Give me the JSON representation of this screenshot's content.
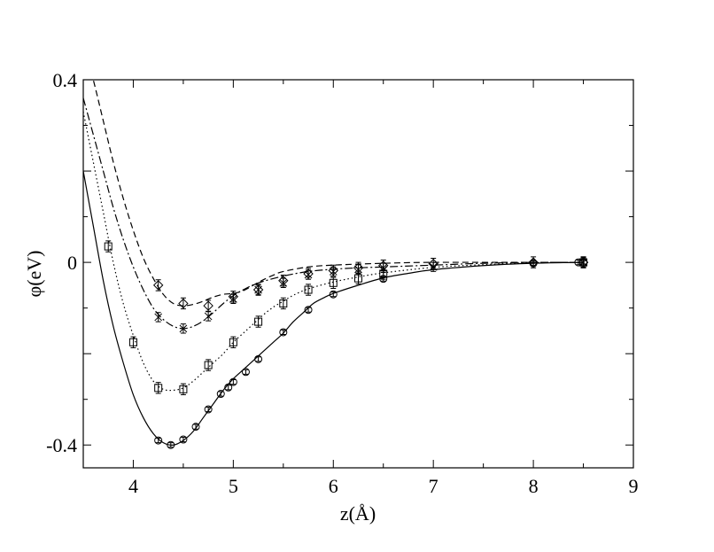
{
  "chart_data": {
    "type": "line",
    "title": "",
    "xlabel": "z(Å)",
    "ylabel": "φ(eV)",
    "xlim": [
      3.5,
      9.0
    ],
    "ylim": [
      -0.45,
      0.4
    ],
    "grid": false,
    "legend": "none",
    "x_ticks": [
      4,
      5,
      6,
      7,
      8,
      9
    ],
    "x_tick_labels": [
      "4",
      "5",
      "6",
      "7",
      "8",
      "9"
    ],
    "y_ticks": [
      -0.4,
      0,
      0.4
    ],
    "y_tick_labels": [
      "-0.4",
      "0",
      "0.4"
    ],
    "y_minor_ticks": [
      -0.2,
      0.2
    ],
    "series": [
      {
        "line_style": "solid",
        "marker": "circle",
        "curve": [
          [
            3.5,
            0.2
          ],
          [
            3.6,
            0.08
          ],
          [
            3.7,
            -0.04
          ],
          [
            3.8,
            -0.14
          ],
          [
            3.9,
            -0.22
          ],
          [
            4.0,
            -0.29
          ],
          [
            4.1,
            -0.34
          ],
          [
            4.2,
            -0.375
          ],
          [
            4.3,
            -0.395
          ],
          [
            4.4,
            -0.4
          ],
          [
            4.5,
            -0.39
          ],
          [
            4.6,
            -0.37
          ],
          [
            4.7,
            -0.34
          ],
          [
            4.8,
            -0.31
          ],
          [
            4.9,
            -0.28
          ],
          [
            5.0,
            -0.255
          ],
          [
            5.1,
            -0.235
          ],
          [
            5.2,
            -0.215
          ],
          [
            5.3,
            -0.195
          ],
          [
            5.4,
            -0.175
          ],
          [
            5.5,
            -0.155
          ],
          [
            5.6,
            -0.13
          ],
          [
            5.7,
            -0.11
          ],
          [
            5.8,
            -0.09
          ],
          [
            5.9,
            -0.078
          ],
          [
            6.0,
            -0.068
          ],
          [
            6.25,
            -0.05
          ],
          [
            6.5,
            -0.034
          ],
          [
            6.75,
            -0.024
          ],
          [
            7.0,
            -0.016
          ],
          [
            7.5,
            -0.007
          ],
          [
            8.0,
            -0.002
          ],
          [
            8.5,
            0.0
          ]
        ],
        "points": [
          [
            4.25,
            -0.39
          ],
          [
            4.375,
            -0.4
          ],
          [
            4.5,
            -0.388
          ],
          [
            4.625,
            -0.36
          ],
          [
            4.75,
            -0.322
          ],
          [
            4.875,
            -0.288
          ],
          [
            4.95,
            -0.274
          ],
          [
            5.0,
            -0.262
          ],
          [
            5.125,
            -0.24
          ],
          [
            5.25,
            -0.212
          ],
          [
            5.5,
            -0.153
          ],
          [
            5.75,
            -0.104
          ],
          [
            6.0,
            -0.07
          ],
          [
            6.5,
            -0.036
          ],
          [
            8.0,
            -0.002
          ],
          [
            8.45,
            0.0
          ],
          [
            8.5,
            0.0
          ]
        ],
        "error": 0.005
      },
      {
        "line_style": "dotted",
        "marker": "square",
        "curve": [
          [
            3.5,
            0.33
          ],
          [
            3.6,
            0.22
          ],
          [
            3.7,
            0.11
          ],
          [
            3.8,
            0.0
          ],
          [
            3.9,
            -0.09
          ],
          [
            4.0,
            -0.16
          ],
          [
            4.1,
            -0.22
          ],
          [
            4.2,
            -0.26
          ],
          [
            4.3,
            -0.278
          ],
          [
            4.4,
            -0.28
          ],
          [
            4.5,
            -0.275
          ],
          [
            4.6,
            -0.26
          ],
          [
            4.7,
            -0.24
          ],
          [
            4.8,
            -0.22
          ],
          [
            4.9,
            -0.2
          ],
          [
            5.0,
            -0.175
          ],
          [
            5.1,
            -0.155
          ],
          [
            5.2,
            -0.135
          ],
          [
            5.3,
            -0.115
          ],
          [
            5.4,
            -0.098
          ],
          [
            5.5,
            -0.085
          ],
          [
            5.6,
            -0.072
          ],
          [
            5.75,
            -0.058
          ],
          [
            6.0,
            -0.043
          ],
          [
            6.25,
            -0.032
          ],
          [
            6.5,
            -0.023
          ],
          [
            7.0,
            -0.011
          ],
          [
            7.5,
            -0.005
          ],
          [
            8.0,
            -0.001
          ],
          [
            8.5,
            0.0
          ]
        ],
        "points": [
          [
            3.75,
            0.035
          ],
          [
            4.0,
            -0.175
          ],
          [
            4.25,
            -0.275
          ],
          [
            4.5,
            -0.278
          ],
          [
            4.75,
            -0.225
          ],
          [
            5.0,
            -0.175
          ],
          [
            5.25,
            -0.13
          ],
          [
            5.5,
            -0.09
          ],
          [
            5.75,
            -0.06
          ],
          [
            6.0,
            -0.045
          ],
          [
            6.25,
            -0.035
          ],
          [
            6.5,
            -0.025
          ],
          [
            8.5,
            0.0
          ]
        ],
        "error": 0.012
      },
      {
        "line_style": "dash-dot",
        "marker": "x",
        "curve": [
          [
            3.5,
            0.36
          ],
          [
            3.6,
            0.28
          ],
          [
            3.7,
            0.2
          ],
          [
            3.8,
            0.12
          ],
          [
            3.9,
            0.05
          ],
          [
            4.0,
            -0.01
          ],
          [
            4.1,
            -0.06
          ],
          [
            4.2,
            -0.1
          ],
          [
            4.3,
            -0.125
          ],
          [
            4.4,
            -0.14
          ],
          [
            4.5,
            -0.145
          ],
          [
            4.6,
            -0.14
          ],
          [
            4.7,
            -0.128
          ],
          [
            4.8,
            -0.11
          ],
          [
            4.9,
            -0.09
          ],
          [
            5.0,
            -0.073
          ],
          [
            5.1,
            -0.06
          ],
          [
            5.25,
            -0.045
          ],
          [
            5.5,
            -0.03
          ],
          [
            5.75,
            -0.02
          ],
          [
            6.0,
            -0.015
          ],
          [
            6.25,
            -0.012
          ],
          [
            6.5,
            -0.01
          ],
          [
            7.0,
            -0.006
          ],
          [
            7.5,
            -0.002
          ],
          [
            8.0,
            0.0
          ],
          [
            8.5,
            0.0
          ]
        ],
        "points": [
          [
            4.25,
            -0.12
          ],
          [
            4.5,
            -0.145
          ],
          [
            4.75,
            -0.118
          ],
          [
            5.0,
            -0.08
          ],
          [
            5.25,
            -0.06
          ],
          [
            5.5,
            -0.045
          ],
          [
            5.75,
            -0.027
          ],
          [
            6.0,
            -0.02
          ],
          [
            6.25,
            -0.015
          ],
          [
            6.5,
            -0.012
          ],
          [
            7.0,
            -0.01
          ],
          [
            8.5,
            0.0
          ]
        ],
        "error": 0.01
      },
      {
        "line_style": "dashed",
        "marker": "diamond",
        "curve": [
          [
            3.5,
            0.48
          ],
          [
            3.6,
            0.4
          ],
          [
            3.7,
            0.31
          ],
          [
            3.8,
            0.22
          ],
          [
            3.9,
            0.14
          ],
          [
            4.0,
            0.07
          ],
          [
            4.1,
            0.01
          ],
          [
            4.2,
            -0.035
          ],
          [
            4.3,
            -0.07
          ],
          [
            4.4,
            -0.09
          ],
          [
            4.5,
            -0.095
          ],
          [
            4.6,
            -0.092
          ],
          [
            4.7,
            -0.085
          ],
          [
            4.8,
            -0.076
          ],
          [
            4.9,
            -0.07
          ],
          [
            5.0,
            -0.068
          ],
          [
            5.1,
            -0.062
          ],
          [
            5.2,
            -0.05
          ],
          [
            5.3,
            -0.038
          ],
          [
            5.4,
            -0.028
          ],
          [
            5.5,
            -0.02
          ],
          [
            5.75,
            -0.01
          ],
          [
            6.0,
            -0.006
          ],
          [
            6.5,
            -0.002
          ],
          [
            7.0,
            0.0
          ],
          [
            8.0,
            0.0
          ],
          [
            8.5,
            0.0
          ]
        ],
        "points": [
          [
            4.25,
            -0.05
          ],
          [
            4.5,
            -0.09
          ],
          [
            4.75,
            -0.095
          ],
          [
            5.0,
            -0.075
          ],
          [
            5.25,
            -0.06
          ],
          [
            5.5,
            -0.04
          ],
          [
            5.75,
            -0.025
          ],
          [
            6.0,
            -0.018
          ],
          [
            6.25,
            -0.012
          ],
          [
            6.5,
            -0.007
          ],
          [
            7.0,
            -0.003
          ],
          [
            8.0,
            0.0
          ],
          [
            8.5,
            0.0
          ]
        ],
        "error": 0.012
      }
    ]
  }
}
